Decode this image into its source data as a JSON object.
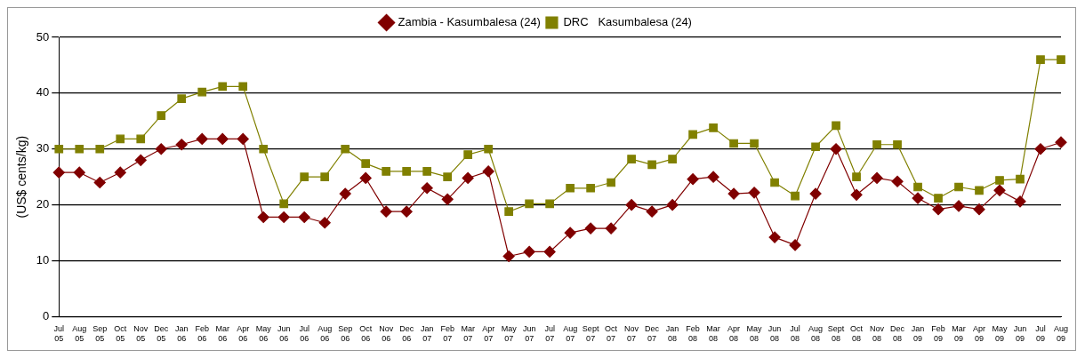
{
  "chart_data": {
    "type": "line",
    "ylabel": "(US$ cents/kg)",
    "categories": [
      "Jul 05",
      "Aug 05",
      "Sep 05",
      "Oct 05",
      "Nov 05",
      "Dec 05",
      "Jan 06",
      "Feb 06",
      "Mar 06",
      "Apr 06",
      "May 06",
      "Jun 06",
      "Jul 06",
      "Aug 06",
      "Sep 06",
      "Oct 06",
      "Nov 06",
      "Dec 06",
      "Jan 07",
      "Feb 07",
      "Mar 07",
      "Apr 07",
      "May 07",
      "Jun 07",
      "Jul 07",
      "Aug 07",
      "Sept 07",
      "Oct 07",
      "Nov 07",
      "Dec 07",
      "Jan 08",
      "Feb 08",
      "Mar 08",
      "Apr 08",
      "May 08",
      "Jun 08",
      "Jul 08",
      "Aug 08",
      "Sept 08",
      "Oct 08",
      "Nov 08",
      "Dec 08",
      "Jan 09",
      "Feb 09",
      "Mar 09",
      "Apr 09",
      "May 09",
      "Jun 09",
      "Jul 09",
      "Aug 09"
    ],
    "series": [
      {
        "name": "Zambia - Kasumbalesa (24)",
        "color": "#800000",
        "marker": "diamond",
        "values": [
          25.8,
          25.8,
          24,
          25.8,
          28,
          30,
          30.8,
          31.8,
          31.8,
          31.8,
          17.8,
          17.8,
          17.8,
          16.8,
          22,
          24.8,
          18.8,
          18.8,
          23,
          21,
          24.8,
          26,
          10.8,
          11.6,
          11.6,
          15,
          15.8,
          15.8,
          20,
          18.8,
          20,
          24.6,
          25,
          22,
          22.2,
          14.2,
          12.8,
          22,
          30,
          21.8,
          24.8,
          24.2,
          21.2,
          19.2,
          19.8,
          19.2,
          22.6,
          20.6,
          30,
          31.2
        ]
      },
      {
        "name": "DRC   Kasumbalesa (24)",
        "color": "#808000",
        "marker": "square",
        "values": [
          30,
          30,
          30,
          31.8,
          31.8,
          36,
          39,
          40.2,
          41.2,
          41.2,
          30,
          20.2,
          25,
          25,
          30,
          27.4,
          26,
          26,
          26,
          25,
          29,
          30,
          18.8,
          20.2,
          20.2,
          23,
          23,
          24,
          28.2,
          27.2,
          28.2,
          32.6,
          33.8,
          31,
          31,
          24,
          21.6,
          30.4,
          34.2,
          25,
          30.8,
          30.8,
          23.2,
          21.2,
          23.2,
          22.6,
          24.4,
          24.6,
          46,
          46
        ]
      }
    ],
    "ylim": [
      0,
      50
    ],
    "yticks": [
      0,
      10,
      20,
      30,
      40,
      50
    ],
    "grid": "y",
    "legend": "top",
    "line_style": "solid"
  }
}
